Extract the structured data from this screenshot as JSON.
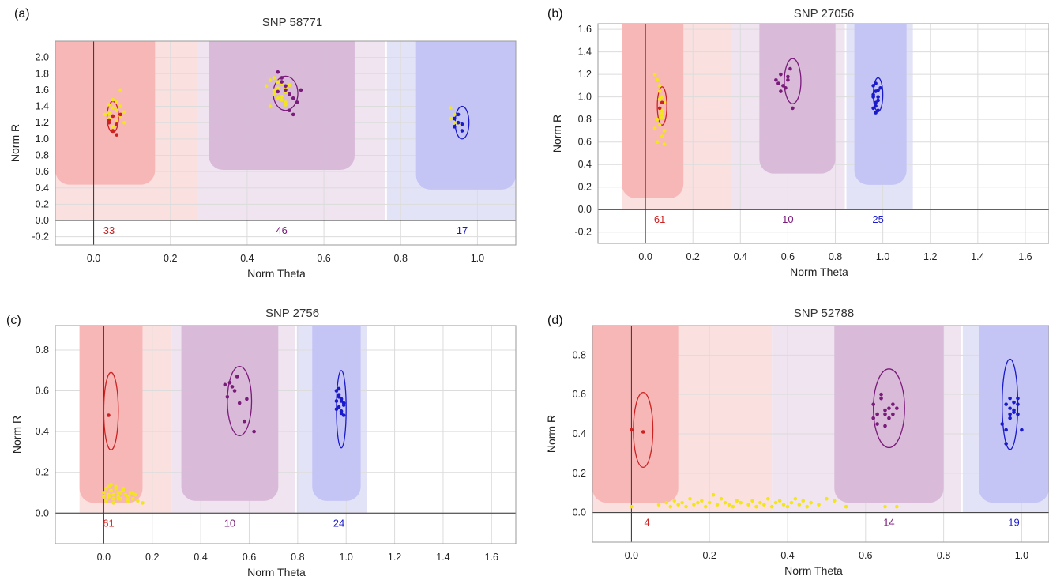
{
  "chart_data": [
    {
      "panel_label": "(a)",
      "type": "scatter",
      "title": "SNP 58771",
      "xlabel": "Norm Theta",
      "ylabel": "Norm R",
      "xlim": [
        -0.1,
        1.1
      ],
      "ylim": [
        -0.3,
        2.2
      ],
      "xticks": [
        0.0,
        0.2,
        0.4,
        0.6,
        0.8,
        1.0
      ],
      "xtick_labels": [
        "0.0",
        "0.2",
        "0.4",
        "0.6",
        "0.8",
        "1.0"
      ],
      "yticks": [
        -0.2,
        0.0,
        0.2,
        0.4,
        0.6,
        0.8,
        1.0,
        1.2,
        1.4,
        1.6,
        1.8,
        2.0
      ],
      "ytick_labels": [
        "-0.2",
        "0.0",
        "0.2",
        "0.4",
        "0.6",
        "0.8",
        "1.0",
        "1.2",
        "1.4",
        "1.6",
        "1.8",
        "2.0"
      ],
      "grid": true,
      "colors": {
        "aa": "#cc2222",
        "ab": "#7a1a7a",
        "bb": "#1a1acc",
        "nocall": "#f2e61a",
        "aa_region": "#f7b4b4",
        "ab_region": "#d7b8d7",
        "bb_region": "#c3c3f4"
      },
      "regions": [
        {
          "cluster": "aa",
          "x": [
            -0.1,
            0.16
          ],
          "y": [
            0.44,
            2.2
          ]
        },
        {
          "cluster": "ab",
          "x": [
            0.3,
            0.68
          ],
          "y": [
            0.62,
            2.2
          ]
        },
        {
          "cluster": "bb",
          "x": [
            0.84,
            1.1
          ],
          "y": [
            0.38,
            2.2
          ]
        }
      ],
      "ellipses": [
        {
          "cluster": "aa",
          "cx": 0.05,
          "cy": 1.27,
          "rx": 0.015,
          "ry": 0.19
        },
        {
          "cluster": "ab",
          "cx": 0.5,
          "cy": 1.56,
          "rx": 0.032,
          "ry": 0.21
        },
        {
          "cluster": "bb",
          "cx": 0.96,
          "cy": 1.2,
          "rx": 0.018,
          "ry": 0.2
        }
      ],
      "counts": [
        {
          "cluster": "aa",
          "x": 0.04,
          "text": "33"
        },
        {
          "cluster": "ab",
          "x": 0.49,
          "text": "46"
        },
        {
          "cluster": "bb",
          "x": 0.96,
          "text": "17"
        }
      ],
      "series": [
        {
          "cluster": "nocall",
          "x": [
            0.03,
            0.04,
            0.05,
            0.06,
            0.07,
            0.08,
            0.05,
            0.06,
            0.04,
            0.07,
            0.06,
            0.05,
            0.08,
            0.07,
            0.04,
            0.47,
            0.48,
            0.49,
            0.5,
            0.46,
            0.48,
            0.5,
            0.47,
            0.49,
            0.51,
            0.46,
            0.48,
            0.5,
            0.47,
            0.49,
            0.45,
            0.48,
            0.5,
            0.93,
            0.94,
            0.95,
            0.93,
            0.94
          ],
          "y": [
            1.3,
            1.42,
            1.48,
            1.35,
            1.28,
            1.2,
            1.38,
            1.45,
            1.32,
            1.4,
            1.22,
            1.15,
            1.33,
            1.6,
            1.25,
            1.55,
            1.62,
            1.68,
            1.58,
            1.72,
            1.5,
            1.45,
            1.6,
            1.52,
            1.66,
            1.4,
            1.57,
            1.63,
            1.75,
            1.48,
            1.65,
            1.7,
            1.42,
            1.25,
            1.3,
            1.18,
            1.38,
            1.2
          ]
        },
        {
          "cluster": "aa",
          "x": [
            0.04,
            0.05,
            0.06,
            0.05,
            0.06,
            0.04,
            0.07
          ],
          "y": [
            1.23,
            1.28,
            1.18,
            1.1,
            1.05,
            1.2,
            1.3
          ]
        },
        {
          "cluster": "ab",
          "x": [
            0.48,
            0.49,
            0.5,
            0.51,
            0.52,
            0.53,
            0.54,
            0.5,
            0.49,
            0.51,
            0.52,
            0.48
          ],
          "y": [
            1.82,
            1.75,
            1.6,
            1.55,
            1.5,
            1.45,
            1.6,
            1.65,
            1.7,
            1.35,
            1.3,
            1.58
          ]
        },
        {
          "cluster": "bb",
          "x": [
            0.94,
            0.95,
            0.96,
            0.95,
            0.94,
            0.96
          ],
          "y": [
            1.25,
            1.2,
            1.18,
            1.3,
            1.15,
            1.1
          ]
        }
      ]
    },
    {
      "panel_label": "(b)",
      "type": "scatter",
      "title": "SNP 27056",
      "xlabel": "Norm Theta",
      "ylabel": "Norm R",
      "xlim": [
        -0.2,
        1.7
      ],
      "ylim": [
        -0.3,
        1.65
      ],
      "xticks": [
        0.0,
        0.2,
        0.4,
        0.6,
        0.8,
        1.0,
        1.2,
        1.4,
        1.6
      ],
      "xtick_labels": [
        "0.0",
        "0.2",
        "0.4",
        "0.6",
        "0.8",
        "1.0",
        "1.2",
        "1.4",
        "1.6"
      ],
      "yticks": [
        -0.2,
        0.0,
        0.2,
        0.4,
        0.6,
        0.8,
        1.0,
        1.2,
        1.4,
        1.6
      ],
      "ytick_labels": [
        "-0.2",
        "0.0",
        "0.2",
        "0.4",
        "0.6",
        "0.8",
        "1.0",
        "1.2",
        "1.4",
        "1.6"
      ],
      "grid": true,
      "colors": {
        "aa": "#cc2222",
        "ab": "#7a1a7a",
        "bb": "#1a1acc",
        "nocall": "#f2e61a",
        "aa_region": "#f7b4b4",
        "ab_region": "#d7b8d7",
        "bb_region": "#c3c3f4"
      },
      "regions": [
        {
          "cluster": "aa",
          "x": [
            -0.1,
            0.16
          ],
          "y": [
            0.1,
            1.65
          ]
        },
        {
          "cluster": "ab",
          "x": [
            0.48,
            0.8
          ],
          "y": [
            0.32,
            1.65
          ]
        },
        {
          "cluster": "bb",
          "x": [
            0.88,
            1.1
          ],
          "y": [
            0.22,
            1.65
          ]
        }
      ],
      "ellipses": [
        {
          "cluster": "aa",
          "cx": 0.07,
          "cy": 0.92,
          "rx": 0.02,
          "ry": 0.17
        },
        {
          "cluster": "ab",
          "cx": 0.62,
          "cy": 1.14,
          "rx": 0.035,
          "ry": 0.2
        },
        {
          "cluster": "bb",
          "cx": 0.98,
          "cy": 1.02,
          "rx": 0.02,
          "ry": 0.15
        }
      ],
      "counts": [
        {
          "cluster": "aa",
          "x": 0.06,
          "text": "61"
        },
        {
          "cluster": "ab",
          "x": 0.6,
          "text": "10"
        },
        {
          "cluster": "bb",
          "x": 0.98,
          "text": "25"
        }
      ],
      "series": [
        {
          "cluster": "nocall",
          "x": [
            0.04,
            0.05,
            0.06,
            0.07,
            0.08,
            0.06,
            0.07,
            0.05,
            0.06,
            0.08,
            0.07,
            0.05,
            0.06,
            0.07,
            0.08,
            0.04,
            0.06,
            0.07
          ],
          "y": [
            1.2,
            1.15,
            1.05,
            1.0,
            0.95,
            0.9,
            0.85,
            0.8,
            0.75,
            0.7,
            0.65,
            0.6,
            1.1,
            0.88,
            0.58,
            0.72,
            0.98,
            0.82
          ]
        },
        {
          "cluster": "aa",
          "x": [
            0.06,
            0.07
          ],
          "y": [
            0.9,
            0.95
          ]
        },
        {
          "cluster": "ab",
          "x": [
            0.55,
            0.56,
            0.57,
            0.58,
            0.6,
            0.61,
            0.62,
            0.57,
            0.59,
            0.6
          ],
          "y": [
            1.15,
            1.12,
            1.2,
            1.1,
            1.18,
            1.25,
            0.9,
            1.05,
            1.08,
            1.15
          ]
        },
        {
          "cluster": "bb",
          "x": [
            0.96,
            0.97,
            0.98,
            0.97,
            0.96,
            0.98,
            0.97,
            0.99,
            0.96,
            0.98,
            0.97,
            0.96,
            0.98,
            0.97
          ],
          "y": [
            1.1,
            1.05,
            1.0,
            0.95,
            0.9,
            0.88,
            1.12,
            1.08,
            1.02,
            0.97,
            0.92,
            1.0,
            1.06,
            0.86
          ]
        }
      ]
    },
    {
      "panel_label": "(c)",
      "type": "scatter",
      "title": "SNP 2756",
      "xlabel": "Norm Theta",
      "ylabel": "Norm R",
      "xlim": [
        -0.2,
        1.7
      ],
      "ylim": [
        -0.15,
        0.92
      ],
      "xticks": [
        0.0,
        0.2,
        0.4,
        0.6,
        0.8,
        1.0,
        1.2,
        1.4,
        1.6
      ],
      "xtick_labels": [
        "0.0",
        "0.2",
        "0.4",
        "0.6",
        "0.8",
        "1.0",
        "1.2",
        "1.4",
        "1.6"
      ],
      "yticks": [
        0.0,
        0.2,
        0.4,
        0.6,
        0.8
      ],
      "ytick_labels": [
        "0.0",
        "0.2",
        "0.4",
        "0.6",
        "0.8"
      ],
      "grid": true,
      "colors": {
        "aa": "#cc2222",
        "ab": "#7a1a7a",
        "bb": "#1a1acc",
        "nocall": "#f2e61a",
        "aa_region": "#f7b4b4",
        "ab_region": "#d7b8d7",
        "bb_region": "#c3c3f4"
      },
      "regions": [
        {
          "cluster": "aa",
          "x": [
            -0.1,
            0.16
          ],
          "y": [
            0.05,
            0.92
          ]
        },
        {
          "cluster": "ab",
          "x": [
            0.32,
            0.72
          ],
          "y": [
            0.06,
            0.92
          ]
        },
        {
          "cluster": "bb",
          "x": [
            0.86,
            1.06
          ],
          "y": [
            0.06,
            0.92
          ]
        }
      ],
      "ellipses": [
        {
          "cluster": "aa",
          "cx": 0.03,
          "cy": 0.5,
          "rx": 0.03,
          "ry": 0.19
        },
        {
          "cluster": "ab",
          "cx": 0.56,
          "cy": 0.55,
          "rx": 0.05,
          "ry": 0.17
        },
        {
          "cluster": "bb",
          "cx": 0.98,
          "cy": 0.51,
          "rx": 0.02,
          "ry": 0.19
        }
      ],
      "counts": [
        {
          "cluster": "aa",
          "x": 0.02,
          "text": "61"
        },
        {
          "cluster": "ab",
          "x": 0.52,
          "text": "10"
        },
        {
          "cluster": "bb",
          "x": 0.97,
          "text": "24"
        }
      ],
      "series": [
        {
          "cluster": "nocall",
          "x": [
            0.0,
            0.01,
            0.02,
            0.03,
            0.04,
            0.05,
            0.06,
            0.07,
            0.08,
            0.09,
            0.1,
            0.11,
            0.12,
            0.13,
            0.14,
            0.16,
            0.01,
            0.03,
            0.05,
            0.07,
            0.02,
            0.04,
            0.06,
            0.08,
            0.1,
            0.12,
            0.0,
            0.02,
            0.04,
            0.06
          ],
          "y": [
            0.1,
            0.12,
            0.08,
            0.11,
            0.09,
            0.13,
            0.1,
            0.07,
            0.12,
            0.09,
            0.08,
            0.1,
            0.07,
            0.09,
            0.06,
            0.05,
            0.06,
            0.14,
            0.12,
            0.1,
            0.09,
            0.07,
            0.08,
            0.11,
            0.06,
            0.1,
            0.08,
            0.13,
            0.05,
            0.07
          ]
        },
        {
          "cluster": "aa",
          "x": [
            0.02
          ],
          "y": [
            0.48
          ]
        },
        {
          "cluster": "ab",
          "x": [
            0.5,
            0.51,
            0.52,
            0.53,
            0.54,
            0.55,
            0.56,
            0.58,
            0.59,
            0.62
          ],
          "y": [
            0.63,
            0.57,
            0.64,
            0.62,
            0.6,
            0.67,
            0.54,
            0.45,
            0.56,
            0.4
          ]
        },
        {
          "cluster": "bb",
          "x": [
            0.96,
            0.97,
            0.98,
            0.99,
            0.97,
            0.98,
            0.96,
            0.99,
            0.97,
            0.98,
            0.96,
            0.99,
            0.97,
            0.98
          ],
          "y": [
            0.6,
            0.58,
            0.56,
            0.54,
            0.52,
            0.5,
            0.55,
            0.53,
            0.57,
            0.49,
            0.51,
            0.48,
            0.61,
            0.55
          ]
        }
      ]
    },
    {
      "panel_label": "(d)",
      "type": "scatter",
      "title": "SNP 52788",
      "xlabel": "Norm Theta",
      "ylabel": "Norm R",
      "xlim": [
        -0.1,
        1.07
      ],
      "ylim": [
        -0.15,
        0.95
      ],
      "xticks": [
        0.0,
        0.2,
        0.4,
        0.6,
        0.8,
        1.0
      ],
      "xtick_labels": [
        "0.0",
        "0.2",
        "0.4",
        "0.6",
        "0.8",
        "1.0"
      ],
      "yticks": [
        0.0,
        0.2,
        0.4,
        0.6,
        0.8
      ],
      "ytick_labels": [
        "0.0",
        "0.2",
        "0.4",
        "0.6",
        "0.8"
      ],
      "grid": true,
      "colors": {
        "aa": "#cc2222",
        "ab": "#7a1a7a",
        "bb": "#1a1acc",
        "nocall": "#f2e61a",
        "aa_region": "#f7b4b4",
        "ab_region": "#d7b8d7",
        "bb_region": "#c3c3f4"
      },
      "regions": [
        {
          "cluster": "aa",
          "x": [
            -0.1,
            0.12
          ],
          "y": [
            0.05,
            0.95
          ]
        },
        {
          "cluster": "ab",
          "x": [
            0.52,
            0.8
          ],
          "y": [
            0.05,
            0.95
          ]
        },
        {
          "cluster": "bb",
          "x": [
            0.89,
            1.07
          ],
          "y": [
            0.05,
            0.95
          ]
        }
      ],
      "ellipses": [
        {
          "cluster": "aa",
          "cx": 0.03,
          "cy": 0.42,
          "rx": 0.025,
          "ry": 0.19
        },
        {
          "cluster": "ab",
          "cx": 0.66,
          "cy": 0.53,
          "rx": 0.04,
          "ry": 0.2
        },
        {
          "cluster": "bb",
          "cx": 0.97,
          "cy": 0.55,
          "rx": 0.02,
          "ry": 0.23
        }
      ],
      "counts": [
        {
          "cluster": "aa",
          "x": 0.04,
          "text": "4"
        },
        {
          "cluster": "ab",
          "x": 0.66,
          "text": "14"
        },
        {
          "cluster": "bb",
          "x": 0.98,
          "text": "19"
        }
      ],
      "series": [
        {
          "cluster": "nocall",
          "x": [
            0.0,
            0.07,
            0.09,
            0.1,
            0.11,
            0.12,
            0.13,
            0.14,
            0.15,
            0.16,
            0.17,
            0.18,
            0.19,
            0.2,
            0.21,
            0.22,
            0.23,
            0.24,
            0.25,
            0.26,
            0.27,
            0.28,
            0.3,
            0.31,
            0.32,
            0.33,
            0.34,
            0.35,
            0.36,
            0.37,
            0.38,
            0.39,
            0.4,
            0.41,
            0.42,
            0.43,
            0.44,
            0.45,
            0.46,
            0.48,
            0.5,
            0.52,
            0.55,
            0.65,
            0.68
          ],
          "y": [
            0.03,
            0.04,
            0.05,
            0.03,
            0.06,
            0.04,
            0.05,
            0.03,
            0.07,
            0.04,
            0.05,
            0.06,
            0.03,
            0.05,
            0.09,
            0.04,
            0.07,
            0.05,
            0.04,
            0.03,
            0.06,
            0.05,
            0.04,
            0.06,
            0.03,
            0.05,
            0.04,
            0.07,
            0.03,
            0.05,
            0.06,
            0.04,
            0.03,
            0.05,
            0.07,
            0.04,
            0.06,
            0.03,
            0.05,
            0.04,
            0.07,
            0.06,
            0.03,
            0.03,
            0.03
          ]
        },
        {
          "cluster": "aa",
          "x": [
            0.0,
            0.03
          ],
          "y": [
            0.42,
            0.41
          ]
        },
        {
          "cluster": "ab",
          "x": [
            0.62,
            0.63,
            0.64,
            0.65,
            0.66,
            0.67,
            0.68,
            0.63,
            0.65,
            0.64,
            0.66,
            0.62,
            0.67,
            0.65
          ],
          "y": [
            0.55,
            0.5,
            0.6,
            0.52,
            0.48,
            0.55,
            0.53,
            0.45,
            0.5,
            0.58,
            0.53,
            0.48,
            0.5,
            0.44
          ]
        },
        {
          "cluster": "bb",
          "x": [
            0.95,
            0.96,
            0.97,
            0.98,
            0.99,
            0.97,
            0.98,
            0.96,
            0.99,
            0.97,
            0.98,
            0.96,
            0.99,
            0.97,
            1.0
          ],
          "y": [
            0.45,
            0.55,
            0.58,
            0.52,
            0.5,
            0.48,
            0.56,
            0.42,
            0.58,
            0.53,
            0.51,
            0.35,
            0.55,
            0.5,
            0.42
          ]
        }
      ]
    }
  ]
}
